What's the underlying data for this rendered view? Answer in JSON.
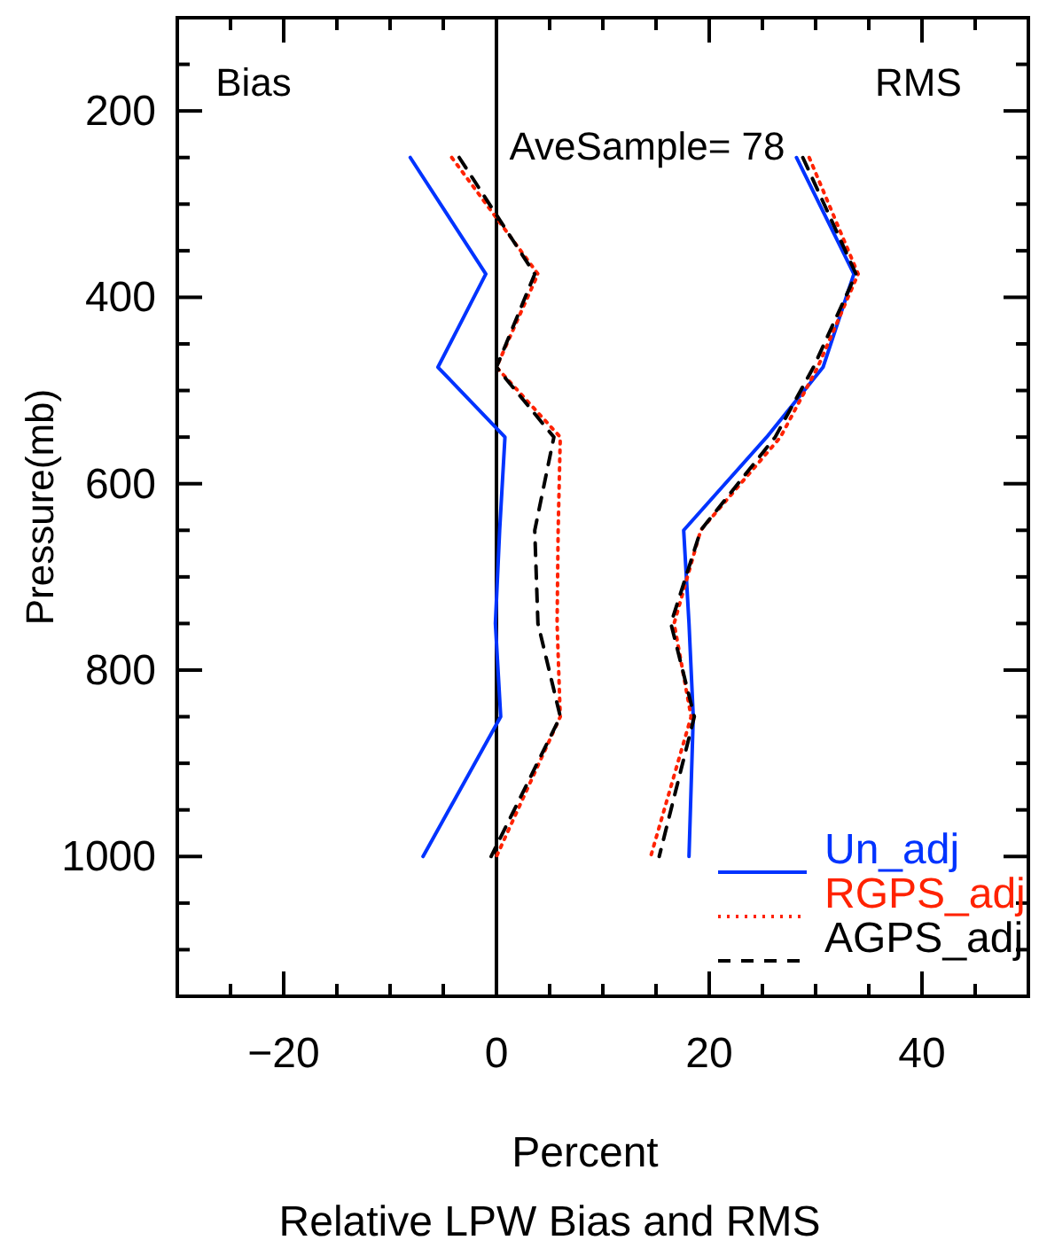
{
  "chart_data": {
    "type": "line",
    "title": "Relative LPW Bias and RMS",
    "xlabel": "Percent",
    "ylabel": "Pressure(mb)",
    "annotations": [
      "Bias",
      "RMS",
      "AveSample= 78"
    ],
    "xlim": [
      -30,
      50
    ],
    "ylim": [
      1150,
      100
    ],
    "xticks": [
      {
        "value": -30,
        "label": null
      },
      {
        "value": -25,
        "label": null
      },
      -20,
      {
        "value": -15,
        "label": null
      },
      {
        "value": -10,
        "label": null
      },
      {
        "value": -5,
        "label": null
      },
      0,
      {
        "value": 5,
        "label": null
      },
      {
        "value": 10,
        "label": null
      },
      {
        "value": 15,
        "label": null
      },
      20,
      {
        "value": 25,
        "label": null
      },
      {
        "value": 30,
        "label": null
      },
      {
        "value": 35,
        "label": null
      },
      40,
      {
        "value": 45,
        "label": null
      }
    ],
    "yticks": [
      {
        "value": 100,
        "label": null
      },
      {
        "value": 150,
        "label": null
      },
      200,
      {
        "value": 250,
        "label": null
      },
      {
        "value": 300,
        "label": null
      },
      {
        "value": 350,
        "label": null
      },
      400,
      {
        "value": 450,
        "label": null
      },
      {
        "value": 500,
        "label": null
      },
      {
        "value": 550,
        "label": null
      },
      600,
      {
        "value": 650,
        "label": null
      },
      {
        "value": 700,
        "label": null
      },
      {
        "value": 750,
        "label": null
      },
      800,
      {
        "value": 850,
        "label": null
      },
      {
        "value": 900,
        "label": null
      },
      {
        "value": 950,
        "label": null
      },
      1000,
      {
        "value": 1050,
        "label": null
      },
      {
        "value": 1100,
        "label": null
      }
    ],
    "grid": false,
    "legend": "bottom right",
    "marker": "none",
    "ref_lines": [
      {
        "axis": "x",
        "value": 0,
        "color": "#000000"
      }
    ],
    "series": [
      {
        "name": "Un_adj",
        "color": "#0033ff",
        "line_style": "solid",
        "x": [
          -8.1,
          -1.0,
          -5.5,
          0.8,
          0.3,
          -0.1,
          0.4,
          -6.9
        ],
        "values": [
          250,
          375,
          475,
          550,
          650,
          750,
          850,
          1000
        ]
      },
      {
        "name": "RGPS_adj",
        "color": "#ff2200",
        "line_style": "dotted",
        "x": [
          -4.2,
          3.9,
          0,
          6.0,
          5.8,
          5.7,
          6.0,
          0
        ],
        "values": [
          250,
          375,
          475,
          550,
          650,
          750,
          850,
          1000
        ]
      },
      {
        "name": "AGPS_adj",
        "color": "#000000",
        "line_style": "dashed",
        "x": [
          -3.5,
          3.6,
          0,
          5.4,
          3.6,
          3.9,
          6.0,
          -0.5
        ],
        "values": [
          250,
          375,
          475,
          550,
          650,
          750,
          850,
          1000
        ]
      },
      {
        "color": "#0033ff",
        "line_style": "solid",
        "x": [
          28.2,
          33.6,
          30.7,
          25.4,
          17.6,
          18.1,
          18.5,
          18.1
        ],
        "values": [
          250,
          375,
          475,
          550,
          650,
          750,
          850,
          1000
        ]
      },
      {
        "color": "#ff2200",
        "line_style": "dotted",
        "x": [
          29.4,
          34.0,
          30.2,
          26.7,
          19.2,
          16.7,
          18.3,
          14.5
        ],
        "values": [
          250,
          375,
          475,
          550,
          650,
          750,
          850,
          1000
        ]
      },
      {
        "color": "#000000",
        "line_style": "dashed",
        "x": [
          28.8,
          33.8,
          29.8,
          26.2,
          19.2,
          16.4,
          18.6,
          15.3
        ],
        "values": [
          250,
          375,
          475,
          550,
          650,
          750,
          850,
          1000
        ]
      }
    ]
  }
}
